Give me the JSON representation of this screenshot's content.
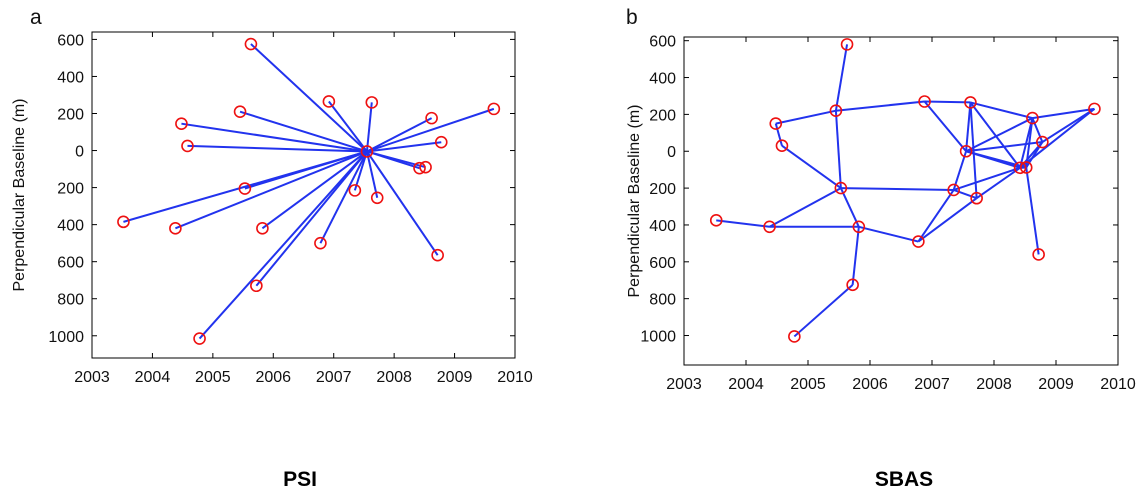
{
  "colors": {
    "edge": "#2233ee",
    "node": "#ee1111",
    "axis": "#000000"
  },
  "captions": {
    "left": "PSI",
    "right": "SBAS"
  },
  "chart_data": [
    {
      "type": "scatter",
      "panel_label": "a",
      "title": "",
      "xlabel": "",
      "ylabel": "Perpendicular Baseline (m)",
      "xlim": [
        2003,
        2010
      ],
      "ylim": [
        -1120,
        640
      ],
      "xticks": [
        2003,
        2004,
        2005,
        2006,
        2007,
        2008,
        2009,
        2010
      ],
      "xtick_labels": [
        "2003",
        "2004",
        "2005",
        "2006",
        "2007",
        "2008",
        "2009",
        "2010"
      ],
      "yticks": [
        600,
        400,
        200,
        0,
        -200,
        -400,
        -600,
        -800,
        -1000
      ],
      "ytick_labels": [
        "600",
        "400",
        "200",
        "0",
        "200",
        "400",
        "600",
        "800",
        "1000"
      ],
      "grid": false,
      "points": [
        [
          2005.63,
          575
        ],
        [
          2006.92,
          265
        ],
        [
          2007.63,
          260
        ],
        [
          2005.45,
          210
        ],
        [
          2004.48,
          145
        ],
        [
          2008.62,
          175
        ],
        [
          2009.65,
          225
        ],
        [
          2004.58,
          25
        ],
        [
          2008.78,
          45
        ],
        [
          2007.55,
          -5
        ],
        [
          2008.42,
          -95
        ],
        [
          2008.52,
          -90
        ],
        [
          2005.53,
          -205
        ],
        [
          2007.35,
          -215
        ],
        [
          2007.72,
          -255
        ],
        [
          2003.52,
          -385
        ],
        [
          2004.38,
          -420
        ],
        [
          2005.82,
          -420
        ],
        [
          2006.78,
          -500
        ],
        [
          2008.72,
          -565
        ],
        [
          2005.72,
          -730
        ],
        [
          2004.78,
          -1015
        ]
      ],
      "edges": [
        [
          9,
          0
        ],
        [
          9,
          1
        ],
        [
          9,
          2
        ],
        [
          9,
          3
        ],
        [
          9,
          4
        ],
        [
          9,
          5
        ],
        [
          9,
          6
        ],
        [
          9,
          7
        ],
        [
          9,
          8
        ],
        [
          9,
          10
        ],
        [
          9,
          11
        ],
        [
          9,
          12
        ],
        [
          9,
          13
        ],
        [
          9,
          14
        ],
        [
          9,
          15
        ],
        [
          9,
          16
        ],
        [
          9,
          17
        ],
        [
          9,
          18
        ],
        [
          9,
          19
        ],
        [
          9,
          20
        ],
        [
          9,
          21
        ]
      ]
    },
    {
      "type": "scatter",
      "panel_label": "b",
      "title": "",
      "xlabel": "",
      "ylabel": "Perpendicular Baseline (m)",
      "xlim": [
        2003,
        2010
      ],
      "ylim": [
        -1160,
        620
      ],
      "xticks": [
        2003,
        2004,
        2005,
        2006,
        2007,
        2008,
        2009,
        2010
      ],
      "xtick_labels": [
        "2003",
        "2004",
        "2005",
        "2006",
        "2007",
        "2008",
        "2009",
        "2010"
      ],
      "yticks": [
        600,
        400,
        200,
        0,
        -200,
        -400,
        -600,
        -800,
        -1000
      ],
      "ytick_labels": [
        "600",
        "400",
        "200",
        "0",
        "200",
        "400",
        "600",
        "800",
        "1000"
      ],
      "grid": false,
      "points": [
        [
          2005.63,
          580
        ],
        [
          2006.88,
          270
        ],
        [
          2007.62,
          265
        ],
        [
          2005.45,
          220
        ],
        [
          2004.48,
          150
        ],
        [
          2008.62,
          180
        ],
        [
          2009.62,
          230
        ],
        [
          2004.58,
          30
        ],
        [
          2008.78,
          50
        ],
        [
          2007.55,
          0
        ],
        [
          2008.42,
          -90
        ],
        [
          2008.52,
          -88
        ],
        [
          2005.53,
          -200
        ],
        [
          2007.35,
          -210
        ],
        [
          2007.72,
          -255
        ],
        [
          2003.52,
          -375
        ],
        [
          2004.38,
          -410
        ],
        [
          2005.82,
          -410
        ],
        [
          2006.78,
          -490
        ],
        [
          2008.72,
          -560
        ],
        [
          2005.72,
          -725
        ],
        [
          2004.78,
          -1005
        ]
      ],
      "edges": [
        [
          0,
          3
        ],
        [
          3,
          1
        ],
        [
          1,
          2
        ],
        [
          2,
          5
        ],
        [
          5,
          6
        ],
        [
          6,
          8
        ],
        [
          4,
          3
        ],
        [
          4,
          7
        ],
        [
          3,
          12
        ],
        [
          7,
          12
        ],
        [
          12,
          13
        ],
        [
          12,
          17
        ],
        [
          17,
          18
        ],
        [
          17,
          20
        ],
        [
          20,
          21
        ],
        [
          15,
          16
        ],
        [
          16,
          17
        ],
        [
          16,
          12
        ],
        [
          13,
          14
        ],
        [
          13,
          10
        ],
        [
          18,
          14
        ],
        [
          14,
          10
        ],
        [
          18,
          13
        ],
        [
          2,
          9
        ],
        [
          2,
          14
        ],
        [
          9,
          10
        ],
        [
          9,
          11
        ],
        [
          9,
          8
        ],
        [
          9,
          5
        ],
        [
          1,
          9
        ],
        [
          5,
          10
        ],
        [
          5,
          11
        ],
        [
          8,
          11
        ],
        [
          8,
          10
        ],
        [
          6,
          10
        ],
        [
          11,
          19
        ],
        [
          10,
          11
        ],
        [
          5,
          8
        ],
        [
          9,
          13
        ],
        [
          2,
          10
        ]
      ]
    }
  ]
}
